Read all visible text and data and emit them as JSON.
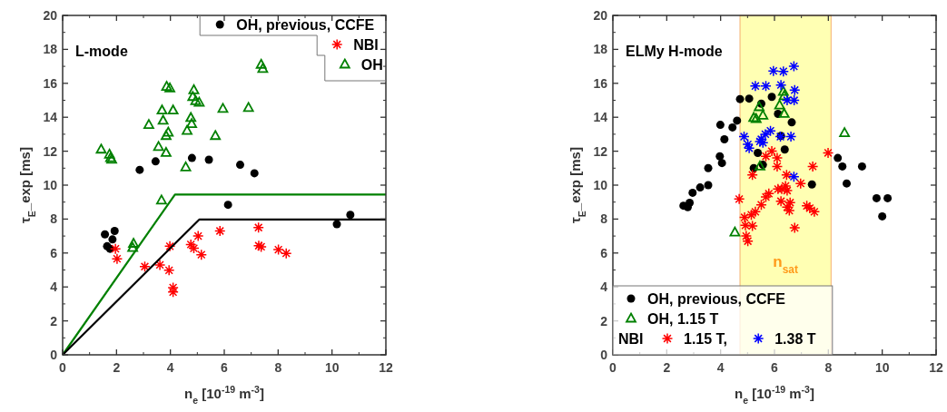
{
  "chart_data": [
    {
      "type": "scatter",
      "title": "L-mode",
      "xlabel": "n$_{e}$ [10$^{-19}$ m$^{-3}$]",
      "ylabel": "τ$_{E}$_exp [ms]",
      "xlim": [
        0,
        12
      ],
      "xticks": [
        0,
        2,
        4,
        6,
        8,
        10,
        12
      ],
      "ylim": [
        0,
        20
      ],
      "yticks": [
        0,
        2,
        4,
        6,
        8,
        10,
        12,
        14,
        16,
        18,
        20
      ],
      "grid": false,
      "legend": "top right",
      "series": [
        {
          "name": "OH, previous, CCFE",
          "color": "#000000",
          "marker": "circle",
          "x": [
            1.57,
            1.93,
            1.85,
            1.65,
            1.76,
            2.86,
            3.45,
            4.8,
            5.43,
            6.59,
            7.12,
            6.14,
            10.18,
            10.68
          ],
          "values": [
            7.1,
            7.3,
            6.8,
            6.4,
            6.25,
            10.9,
            11.4,
            11.6,
            11.5,
            11.2,
            10.7,
            8.84,
            7.7,
            8.25
          ]
        },
        {
          "name": "NBI",
          "color": "#ff0000",
          "marker": "cross",
          "x": [
            1.96,
            2.02,
            3.05,
            3.61,
            3.95,
            3.98,
            4.1,
            4.1,
            4.76,
            4.87,
            5.03,
            5.15,
            5.84,
            7.27,
            7.28,
            7.37,
            8.01,
            8.3
          ],
          "values": [
            6.25,
            5.66,
            5.2,
            5.3,
            4.98,
            6.4,
            3.96,
            3.7,
            6.5,
            6.28,
            7.0,
            5.9,
            7.3,
            7.5,
            6.43,
            6.37,
            6.2,
            5.98
          ]
        },
        {
          "name": "OH",
          "color": "#008000",
          "marker": "triangle",
          "x": [
            1.43,
            1.74,
            1.78,
            1.82,
            3.2,
            3.56,
            3.69,
            3.73,
            3.84,
            3.84,
            3.92,
            3.86,
            3.98,
            4.1,
            4.57,
            4.62,
            4.76,
            4.79,
            4.87,
            4.83,
            4.94,
            5.07,
            5.67,
            5.95,
            6.9,
            7.37,
            7.43,
            3.67,
            2.63,
            2.6
          ],
          "values": [
            12.1,
            11.8,
            11.6,
            11.5,
            13.55,
            12.25,
            14.4,
            13.8,
            11.9,
            12.9,
            13.1,
            15.8,
            15.7,
            14.4,
            11.05,
            13.2,
            13.96,
            13.6,
            15.6,
            15.2,
            14.95,
            14.86,
            12.9,
            14.5,
            14.55,
            17.1,
            16.85,
            9.1,
            6.55,
            6.3
          ]
        },
        {
          "type": "line",
          "color": "#008000",
          "x": [
            0,
            4.17,
            12
          ],
          "values": [
            0,
            9.45,
            9.45
          ]
        },
        {
          "type": "line",
          "color": "#000000",
          "x": [
            0,
            5.07,
            12
          ],
          "values": [
            0,
            7.97,
            7.97
          ]
        }
      ]
    },
    {
      "type": "scatter",
      "title": "ELMy H-mode",
      "xlabel": "n$_{e}$ [10$^{-19}$ m$^{-3}$]",
      "ylabel": "τ$_{E}$_exp [ms]",
      "xlim": [
        0,
        12
      ],
      "xticks": [
        0,
        2,
        4,
        6,
        8,
        10,
        12
      ],
      "ylim": [
        0,
        20
      ],
      "yticks": [
        0,
        2,
        4,
        6,
        8,
        10,
        12,
        14,
        16,
        18,
        20
      ],
      "grid": false,
      "legend": "bottom left",
      "legend_title": "NBI",
      "bands": [
        {
          "axis": "x",
          "from": 4.72,
          "to": 8.1,
          "label": "n$_{sat}$",
          "color": "#ffffb3"
        }
      ],
      "series": [
        {
          "name": "OH, previous, CCFE",
          "color": "#000000",
          "marker": "circle",
          "x": [
            3.54,
            3.97,
            4.05,
            4.14,
            3.99,
            4.44,
            4.61,
            4.72,
            5.06,
            5.51,
            5.9,
            6.13,
            6.64,
            6.24,
            5.38,
            6.38,
            5.23,
            5.57,
            8.35,
            8.52,
            9.25,
            3.54,
            3.24,
            2.96,
            2.62,
            2.85,
            2.78,
            7.39,
            8.68,
            9.79,
            10.2,
            10.0
          ],
          "values": [
            11.0,
            11.7,
            11.3,
            12.7,
            13.55,
            13.4,
            13.8,
            15.07,
            15.1,
            14.8,
            15.2,
            14.2,
            13.7,
            12.9,
            11.9,
            12.1,
            11.0,
            11.2,
            11.6,
            11.1,
            11.1,
            10.0,
            9.86,
            9.55,
            8.79,
            8.96,
            8.7,
            10.04,
            10.1,
            9.23,
            9.23,
            8.16
          ]
        },
        {
          "name": "OH, 1.15 T",
          "color": "#008000",
          "marker": "triangle",
          "x": [
            6.33,
            6.36,
            6.19,
            5.43,
            5.57,
            5.23,
            5.32,
            6.36,
            8.6,
            5.46,
            4.53
          ],
          "values": [
            15.5,
            15.25,
            14.7,
            14.6,
            14.1,
            13.96,
            13.9,
            14.2,
            13.07,
            11.1,
            7.21
          ]
        },
        {
          "name": "1.15 T,",
          "color": "#ff0000",
          "marker": "cross",
          "x": [
            5.68,
            5.9,
            6.1,
            6.1,
            7.99,
            7.42,
            5.18,
            6.45,
            4.69,
            5.79,
            5.68,
            5.51,
            5.29,
            5.14,
            4.89,
            4.92,
            5.18,
            4.95,
            5.01,
            6.27,
            6.47,
            6.41,
            6.97,
            6.24,
            6.58,
            6.47,
            6.55,
            7.2,
            7.31,
            7.48,
            6.75,
            6.13
          ],
          "values": [
            11.7,
            12.0,
            11.6,
            11.1,
            11.9,
            11.1,
            10.6,
            10.6,
            9.18,
            9.5,
            9.3,
            8.84,
            8.43,
            8.25,
            8.1,
            7.63,
            7.6,
            7.0,
            6.7,
            9.77,
            9.68,
            9.95,
            10.1,
            9.05,
            8.97,
            8.7,
            8.5,
            8.78,
            8.64,
            8.43,
            7.48,
            9.77
          ]
        },
        {
          "name": "1.38 T",
          "color": "#0000ff",
          "marker": "cross",
          "x": [
            6.72,
            6.33,
            5.96,
            6.24,
            5.29,
            5.68,
            6.75,
            6.73,
            6.47,
            4.87,
            5.01,
            5.06,
            5.85,
            5.66,
            5.51,
            5.46,
            5.57,
            6.22,
            6.61,
            6.72
          ],
          "values": [
            17.0,
            16.7,
            16.73,
            15.9,
            15.84,
            15.84,
            15.6,
            15.0,
            15.0,
            12.86,
            12.4,
            12.18,
            13.2,
            13.0,
            12.7,
            12.57,
            12.5,
            12.86,
            12.86,
            10.5
          ]
        }
      ]
    }
  ]
}
